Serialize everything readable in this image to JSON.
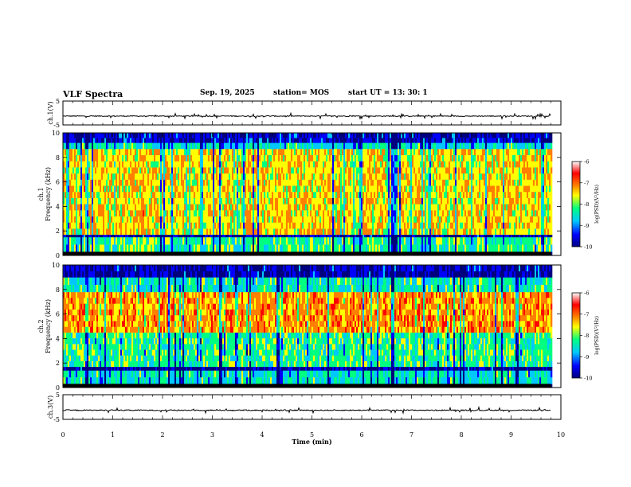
{
  "header": {
    "title": "VLF Spectra",
    "date": "Sep. 19, 2025",
    "station": "station= MOS",
    "start": "start  UT =   13: 30: 1"
  },
  "chart_data": [
    {
      "type": "line",
      "name": "ch1-waveform",
      "ylabel": "ch.1(V)",
      "ylim": [
        -5,
        5
      ],
      "yticks": [
        "5",
        "-5"
      ],
      "xlim": [
        0,
        10
      ],
      "baseline": -1.3
    },
    {
      "type": "heatmap",
      "name": "ch1-spectrogram",
      "ylabel_line1": "ch.1",
      "ylabel_line2": "Frequency (kHz)",
      "ylim": [
        0,
        10
      ],
      "yticks": [
        "0",
        "2",
        "4",
        "6",
        "8",
        "10"
      ],
      "xlim": [
        0,
        9.8
      ],
      "colorbar": {
        "label": "log(PSD)(V²/Hz)",
        "ticks": [
          "-6",
          "-7",
          "-8",
          "-9",
          "-10"
        ],
        "range": [
          -10,
          -6
        ]
      },
      "band_structure": [
        {
          "from_khz": 0,
          "to_khz": 0.3,
          "level": -10
        },
        {
          "from_khz": 0.3,
          "to_khz": 1.5,
          "level": -8
        },
        {
          "from_khz": 1.5,
          "to_khz": 1.7,
          "level": -9.5
        },
        {
          "from_khz": 1.7,
          "to_khz": 8.7,
          "level": -7.3
        },
        {
          "from_khz": 8.7,
          "to_khz": 9.2,
          "level": -8.3
        },
        {
          "from_khz": 9.2,
          "to_khz": 10,
          "level": -9.3
        }
      ]
    },
    {
      "type": "heatmap",
      "name": "ch2-spectrogram",
      "ylabel_line1": "ch.2",
      "ylabel_line2": "Frequency (kHz)",
      "ylim": [
        0,
        10
      ],
      "yticks": [
        "0",
        "2",
        "4",
        "6",
        "8",
        "10"
      ],
      "xlim": [
        0,
        9.8
      ],
      "colorbar": {
        "label": "log(PSD)(V²/Hz)",
        "ticks": [
          "-6",
          "-7",
          "-8",
          "-9",
          "-10"
        ],
        "range": [
          -10,
          -6
        ]
      },
      "band_structure": [
        {
          "from_khz": 0,
          "to_khz": 0.3,
          "level": -10
        },
        {
          "from_khz": 0.3,
          "to_khz": 1.4,
          "level": -8.3
        },
        {
          "from_khz": 1.4,
          "to_khz": 1.7,
          "level": -9.5
        },
        {
          "from_khz": 1.7,
          "to_khz": 4.5,
          "level": -8
        },
        {
          "from_khz": 4.5,
          "to_khz": 7.8,
          "level": -6.9
        },
        {
          "from_khz": 7.8,
          "to_khz": 9,
          "level": -8.2
        },
        {
          "from_khz": 9,
          "to_khz": 10,
          "level": -9.4
        }
      ]
    },
    {
      "type": "line",
      "name": "ch3-waveform",
      "ylabel": "ch.3(V)",
      "ylim": [
        -5,
        5
      ],
      "yticks": [
        "5",
        "-5"
      ],
      "xlim": [
        0,
        10
      ],
      "baseline": -1.3
    }
  ],
  "x_axis": {
    "label": "Time  (min)",
    "ticks": [
      "0",
      "1",
      "2",
      "3",
      "4",
      "5",
      "6",
      "7",
      "8",
      "9",
      "10"
    ]
  },
  "colorscale": [
    "#00007f",
    "#0000ff",
    "#00c8ff",
    "#00ff80",
    "#ffff00",
    "#ff7f00",
    "#ff0000",
    "#ffffff"
  ]
}
